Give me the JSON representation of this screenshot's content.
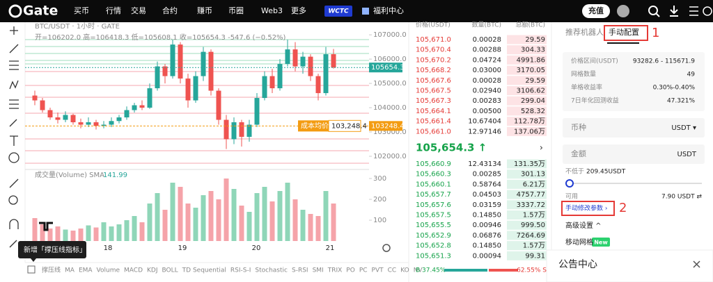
{
  "nav": {
    "logo": "Gate",
    "menu": [
      "买币",
      "行情",
      "交易",
      "合约",
      "赚币",
      "币圈",
      "Web3",
      "更多"
    ],
    "badge": "WCTC",
    "welfare": "福利中心",
    "deposit": "充值"
  },
  "chart": {
    "symbol": "BTC/USDT · 1小时 · GATE",
    "ohlc": "开=106202.0 高=106418.3 低=105608.1 收=105654.3 -547.6 (−0.52%)",
    "price_lim": [
      101570,
      107290
    ],
    "price_ticks": [
      {
        "value": 107000,
        "label": "107000.0"
      },
      {
        "value": 106000,
        "label": "106000.0"
      },
      {
        "value": 105000,
        "label": "105000.0"
      },
      {
        "value": 104000,
        "label": "104000.0"
      },
      {
        "value": 103000,
        "label": "103000.0"
      },
      {
        "value": 102000,
        "label": "102000.0"
      }
    ],
    "last_price_tag": {
      "value": 105654.3,
      "label": "105654.3"
    },
    "cost_label": "成本均价",
    "cost_value": "103,248.4",
    "cost_tag": {
      "value": 103248.4,
      "label": "103248.4"
    },
    "volume_title": "成交量(Volume) SMA",
    "volume_sma": "141.99",
    "volume_lim": [
      0,
      330
    ],
    "volume_ticks": [
      300,
      200,
      100
    ],
    "dates": [
      "18",
      "19",
      "20",
      "21"
    ],
    "candles": {
      "open": [
        104500,
        104300,
        103900,
        103600,
        103500,
        103700,
        103400,
        103300,
        103400,
        103250,
        103300,
        103450,
        103600,
        103900,
        104100,
        104000,
        104800,
        105700,
        105300,
        106600,
        105200,
        104300,
        105300,
        106300,
        104700,
        103500,
        102700,
        103400,
        102800,
        103300,
        104400,
        105300,
        104800,
        105800,
        106400,
        105700,
        106100,
        105300,
        104600,
        106202.0
      ],
      "high": [
        104700,
        104400,
        104000,
        103800,
        103850,
        103750,
        103550,
        103600,
        103500,
        103450,
        103600,
        103700,
        104050,
        104200,
        104300,
        105000,
        105900,
        105800,
        106800,
        106700,
        105400,
        105500,
        106500,
        106400,
        104800,
        103700,
        103600,
        103500,
        103500,
        104600,
        105500,
        105600,
        106000,
        106800,
        106700,
        106300,
        106200,
        105400,
        106500,
        106418.3
      ],
      "low": [
        104100,
        103800,
        103500,
        103350,
        103400,
        103300,
        103150,
        103200,
        103100,
        103150,
        103200,
        103350,
        103500,
        103800,
        103900,
        103950,
        104700,
        105000,
        105200,
        105000,
        104000,
        104200,
        105100,
        104500,
        103300,
        102300,
        102500,
        102400,
        102600,
        103200,
        104300,
        104600,
        104700,
        105700,
        105500,
        105400,
        105100,
        104300,
        104500,
        105608.1
      ],
      "close": [
        104300,
        103900,
        103600,
        103500,
        103700,
        103400,
        103300,
        103400,
        103250,
        103300,
        103450,
        103600,
        103900,
        104100,
        104000,
        104800,
        105700,
        105300,
        106600,
        105200,
        104300,
        105300,
        106300,
        104700,
        103500,
        102700,
        103400,
        102800,
        103300,
        104400,
        105300,
        104800,
        105800,
        106400,
        105700,
        106100,
        105300,
        104600,
        106202.0,
        105654.3
      ]
    },
    "volume": [
      110,
      80,
      60,
      70,
      55,
      50,
      60,
      75,
      65,
      90,
      70,
      80,
      100,
      120,
      90,
      180,
      230,
      150,
      280,
      260,
      180,
      160,
      220,
      240,
      200,
      300,
      250,
      170,
      140,
      230,
      260,
      190,
      240,
      280,
      200,
      150,
      130,
      120,
      240,
      180
    ],
    "tooltip": "新增「撑压线指标」",
    "indicators": [
      "撑压线",
      "MA",
      "EMA",
      "Volume",
      "MACD",
      "KDJ",
      "BOLL",
      "TD Sequential",
      "RSI-S-I",
      "Stochastic",
      "S-RSI",
      "SMI",
      "TRIX",
      "PO",
      "PC",
      "PVT",
      "CC",
      "KO",
      "NV"
    ]
  },
  "order_book": {
    "headers": [
      "价格(USDT)",
      "数量(BTC)",
      "总额(BTC)"
    ],
    "asks": [
      [
        "105,671.0",
        "0.00028",
        "29.59"
      ],
      [
        "105,670.4",
        "0.00288",
        "304.33"
      ],
      [
        "105,670.2",
        "0.04724",
        "4991.86"
      ],
      [
        "105,668.2",
        "0.03000",
        "3170.05"
      ],
      [
        "105,667.6",
        "0.00028",
        "29.59"
      ],
      [
        "105,667.5",
        "0.02940",
        "3106.62"
      ],
      [
        "105,667.3",
        "0.00283",
        "299.04"
      ],
      [
        "105,664.1",
        "0.00500",
        "528.32"
      ],
      [
        "105,661.4",
        "10.67404",
        "112.78万"
      ],
      [
        "105,661.0",
        "12.97146",
        "137.06万"
      ]
    ],
    "mid": "105,654.3 ↑",
    "bids": [
      [
        "105,660.9",
        "12.43134",
        "131.35万"
      ],
      [
        "105,660.3",
        "0.00285",
        "301.13"
      ],
      [
        "105,660.1",
        "0.58764",
        "6.21万"
      ],
      [
        "105,657.7",
        "0.04503",
        "4757.77"
      ],
      [
        "105,657.6",
        "0.03159",
        "3337.72"
      ],
      [
        "105,657.5",
        "0.14850",
        "1.57万"
      ],
      [
        "105,655.5",
        "0.00946",
        "999.50"
      ],
      [
        "105,652.9",
        "0.06876",
        "7264.69"
      ],
      [
        "105,652.8",
        "0.14850",
        "1.57万"
      ],
      [
        "105,651.3",
        "0.00094",
        "99.31"
      ]
    ],
    "buy_ratio": "B 37.45%",
    "sell_ratio": "62.55% S"
  },
  "bot": {
    "tabs": [
      "推荐机器人",
      "手动配置"
    ],
    "marker1": "1",
    "params": [
      [
        "价格区间(USDT)",
        "93282.6 - 115671.9"
      ],
      [
        "网格数量",
        "49"
      ],
      [
        "单格收益率",
        "0.30%-0.40%"
      ],
      [
        "7日年化回测收益",
        "47.321%"
      ]
    ],
    "currency_label": "币种",
    "currency": "USDT ▾",
    "amount_label": "金额",
    "amount_unit": "USDT",
    "min_label": "不低于",
    "min_value": "209.45USDT",
    "available_label": "可用",
    "available": "7.90 USDT ⇄",
    "manual": "手动修改参数 ›",
    "marker2": "2",
    "advanced": "高级设置 ^",
    "moving_grid": "移动网格",
    "new_badge": "New"
  },
  "notice": {
    "title": "公告中心"
  }
}
